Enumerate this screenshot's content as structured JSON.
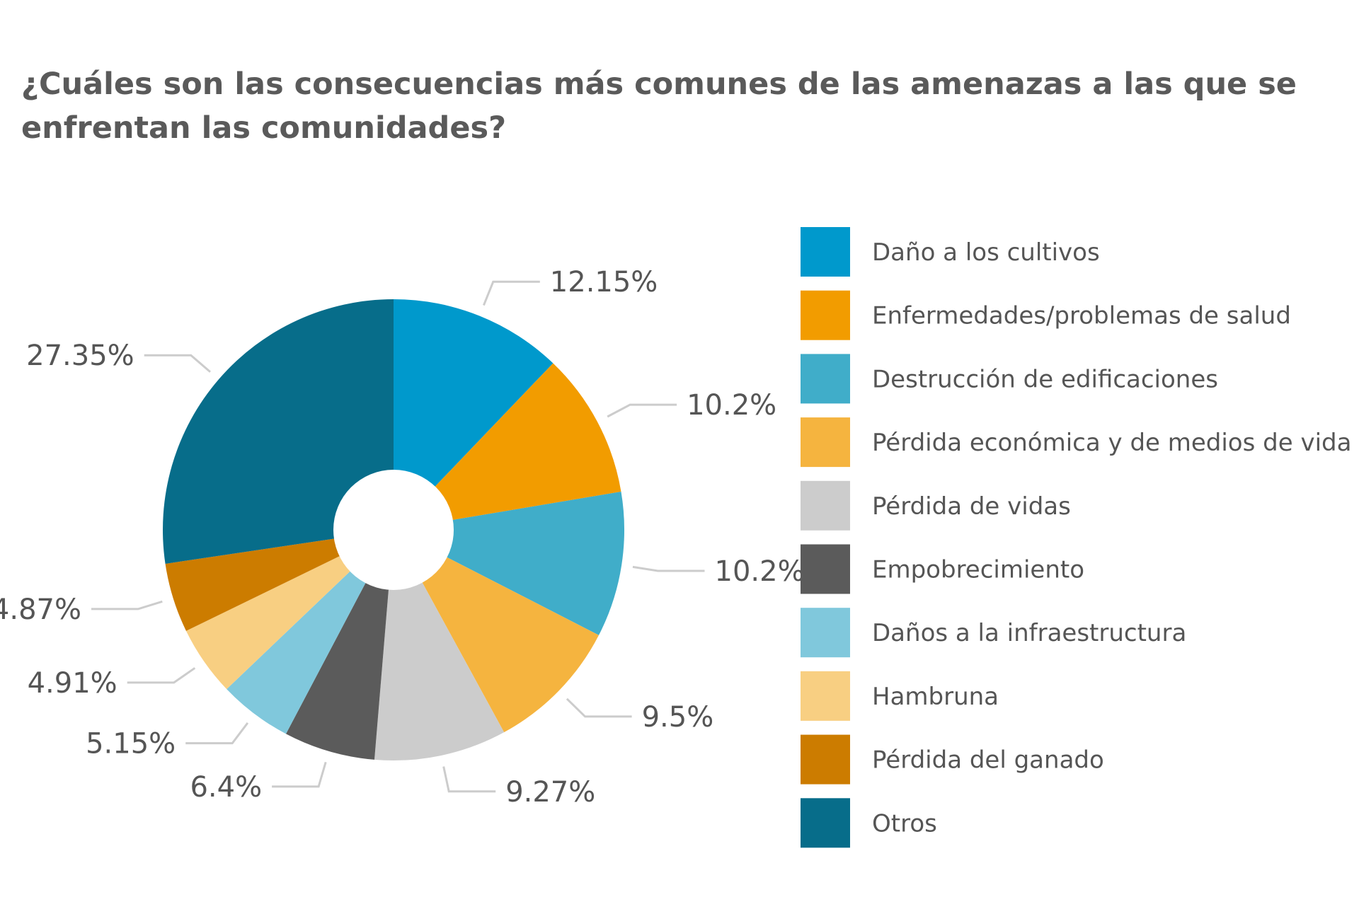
{
  "chart_data": {
    "type": "pie",
    "title": "¿Cuáles son las consecuencias más comunes de las amenazas a las que se enfrentan las comunidades?",
    "donut": true,
    "legend_position": "right",
    "slices": [
      {
        "label": "Daño a los cultivos",
        "value": 12.15,
        "display": "12.15%",
        "color": "#0099cc"
      },
      {
        "label": "Enfermedades/problemas de salud",
        "value": 10.2,
        "display": "10.2%",
        "color": "#f29c00"
      },
      {
        "label": "Destrucción de edificaciones",
        "value": 10.2,
        "display": "10.2%",
        "color": "#40adc9"
      },
      {
        "label": "Pérdida económica y de medios de vida",
        "value": 9.5,
        "display": "9.5%",
        "color": "#f5b43f"
      },
      {
        "label": "Pérdida de vidas",
        "value": 9.27,
        "display": "9.27%",
        "color": "#cccccc"
      },
      {
        "label": "Empobrecimiento",
        "value": 6.4,
        "display": "6.4%",
        "color": "#5b5b5b"
      },
      {
        "label": "Daños a la infraestructura",
        "value": 5.15,
        "display": "5.15%",
        "color": "#80c8dc"
      },
      {
        "label": "Hambruna",
        "value": 4.91,
        "display": "4.91%",
        "color": "#f8cf82"
      },
      {
        "label": "Pérdida del ganado",
        "value": 4.87,
        "display": "4.87%",
        "color": "#cc7c00"
      },
      {
        "label": "Otros",
        "value": 27.35,
        "display": "27.35%",
        "color": "#076d8a"
      }
    ]
  }
}
